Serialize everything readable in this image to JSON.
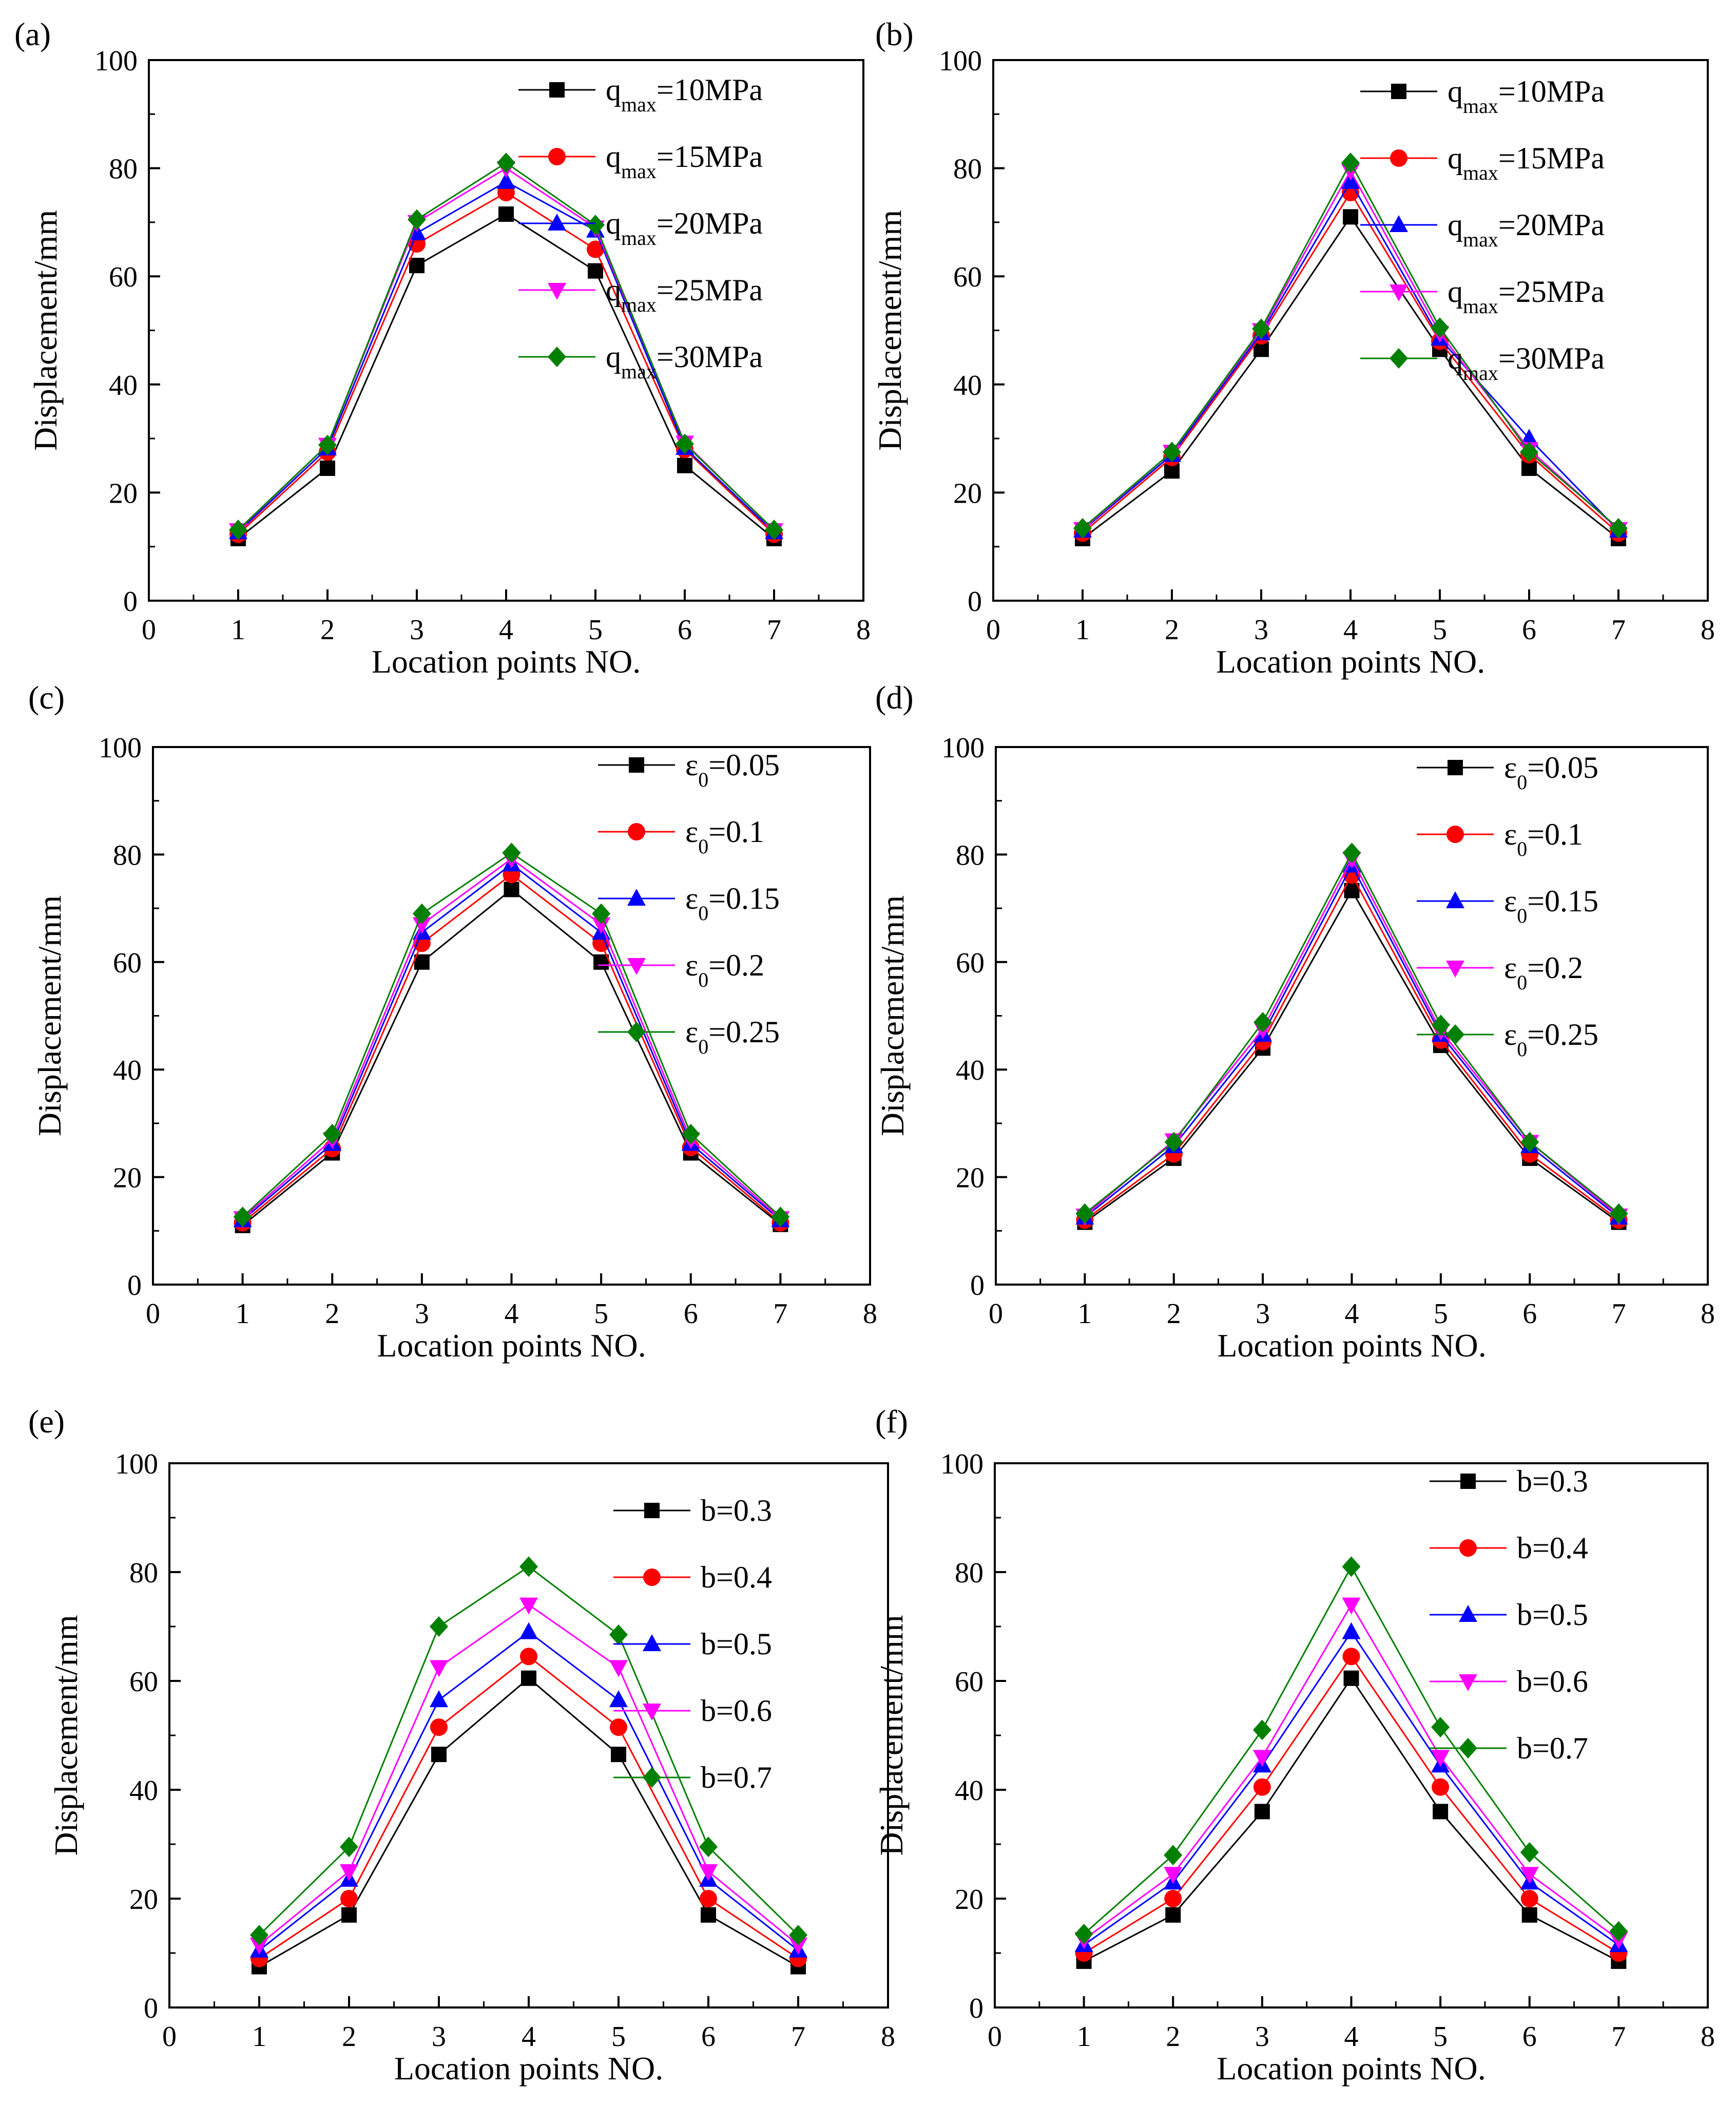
{
  "figure": {
    "panel_count": 6
  },
  "chart_data": [
    {
      "panel": "(a)",
      "type": "line",
      "xlabel": "Location points NO.",
      "ylabel": "Displacement/mm",
      "xlim": [
        0,
        8
      ],
      "ylim": [
        0,
        100
      ],
      "xticks": [
        "0",
        "1",
        "2",
        "3",
        "4",
        "5",
        "6",
        "7",
        "8"
      ],
      "yticks": [
        "0",
        "20",
        "40",
        "60",
        "80",
        "100"
      ],
      "legend_position": "top-right",
      "x": [
        1,
        2,
        3,
        4,
        5,
        6,
        7
      ],
      "series": [
        {
          "name": "q_max=10MPa",
          "legend_base": "q",
          "legend_sub": "max",
          "legend_rest": "=10MPa",
          "color": "#000000",
          "marker": "square",
          "values": [
            11.5,
            24.5,
            62,
            71.5,
            61,
            25,
            11.5
          ]
        },
        {
          "name": "q_max=15MPa",
          "legend_base": "q",
          "legend_sub": "max",
          "legend_rest": "=15MPa",
          "color": "#ff0000",
          "marker": "circle",
          "values": [
            12.3,
            27.5,
            66,
            75.5,
            65,
            28,
            12.3
          ]
        },
        {
          "name": "q_max=20MPa",
          "legend_base": "q",
          "legend_sub": "max",
          "legend_rest": "=20MPa",
          "color": "#0000ff",
          "marker": "triangle-up",
          "values": [
            12.7,
            28.2,
            68,
            77.5,
            68.5,
            28.3,
            12.7
          ]
        },
        {
          "name": "q_max=25MPa",
          "legend_base": "q",
          "legend_sub": "max",
          "legend_rest": "=25MPa",
          "color": "#ff00ff",
          "marker": "triangle-down",
          "values": [
            13,
            28.8,
            70,
            80,
            69,
            29.2,
            13
          ]
        },
        {
          "name": "q_max=30MPa",
          "legend_base": "q",
          "legend_sub": "max",
          "legend_rest": "=30MPa",
          "color": "#008000",
          "marker": "diamond",
          "values": [
            13.1,
            28.8,
            70.5,
            81,
            69.5,
            29,
            13.1
          ]
        }
      ]
    },
    {
      "panel": "(b)",
      "type": "line",
      "xlabel": "Location points NO.",
      "ylabel": "Displacement/mm",
      "xlim": [
        0,
        8
      ],
      "ylim": [
        0,
        100
      ],
      "xticks": [
        "0",
        "1",
        "2",
        "3",
        "4",
        "5",
        "6",
        "7",
        "8"
      ],
      "yticks": [
        "0",
        "20",
        "40",
        "60",
        "80",
        "100"
      ],
      "legend_position": "top-right",
      "x": [
        1,
        2,
        3,
        4,
        5,
        6,
        7
      ],
      "series": [
        {
          "name": "q_max=10MPa",
          "legend_base": "q",
          "legend_sub": "max",
          "legend_rest": "=10MPa",
          "color": "#000000",
          "marker": "square",
          "values": [
            11.5,
            24,
            46.5,
            71,
            46.5,
            24.5,
            11.5
          ]
        },
        {
          "name": "q_max=15MPa",
          "legend_base": "q",
          "legend_sub": "max",
          "legend_rest": "=15MPa",
          "color": "#ff0000",
          "marker": "circle",
          "values": [
            12.5,
            26.5,
            49,
            75.5,
            48,
            27,
            12.5
          ]
        },
        {
          "name": "q_max=20MPa",
          "legend_base": "q",
          "legend_sub": "max",
          "legend_rest": "=20MPa",
          "color": "#0000ff",
          "marker": "triangle-up",
          "values": [
            13,
            27,
            49.5,
            77.5,
            48.5,
            30,
            13
          ]
        },
        {
          "name": "q_max=25MPa",
          "legend_base": "q",
          "legend_sub": "max",
          "legend_rest": "=25MPa",
          "color": "#ff00ff",
          "marker": "triangle-down",
          "values": [
            13.2,
            27.5,
            50,
            79.5,
            49.5,
            28,
            13.2
          ]
        },
        {
          "name": "q_max=30MPa",
          "legend_base": "q",
          "legend_sub": "max",
          "legend_rest": "=30MPa",
          "color": "#008000",
          "marker": "diamond",
          "values": [
            13.4,
            27.5,
            50.3,
            81,
            50.5,
            27.5,
            13.4
          ]
        }
      ]
    },
    {
      "panel": "(c)",
      "type": "line",
      "xlabel": "Location points NO.",
      "ylabel": "Displacement/mm",
      "xlim": [
        0,
        8
      ],
      "ylim": [
        0,
        100
      ],
      "xticks": [
        "0",
        "1",
        "2",
        "3",
        "4",
        "5",
        "6",
        "7",
        "8"
      ],
      "yticks": [
        "0",
        "20",
        "40",
        "60",
        "80",
        "100"
      ],
      "legend_position": "top-right",
      "x": [
        1,
        2,
        3,
        4,
        5,
        6,
        7
      ],
      "series": [
        {
          "name": "ε_0=0.05",
          "legend_base": "ε",
          "legend_sub": "0",
          "legend_rest": "=0.05",
          "color": "#000000",
          "marker": "square",
          "values": [
            11,
            24.5,
            60,
            73.5,
            60,
            24.5,
            11.2
          ]
        },
        {
          "name": "ε_0=0.1",
          "legend_base": "ε",
          "legend_sub": "0",
          "legend_rest": "=0.1",
          "color": "#ff0000",
          "marker": "circle",
          "values": [
            11.5,
            25.3,
            63.5,
            76.3,
            63.5,
            25.5,
            11.5
          ]
        },
        {
          "name": "ε_0=0.15",
          "legend_base": "ε",
          "legend_sub": "0",
          "legend_rest": "=0.15",
          "color": "#0000ff",
          "marker": "triangle-up",
          "values": [
            12,
            26.2,
            65.5,
            78.2,
            65.5,
            26.2,
            12
          ]
        },
        {
          "name": "ε_0=0.2",
          "legend_base": "ε",
          "legend_sub": "0",
          "legend_rest": "=0.2",
          "color": "#ff00ff",
          "marker": "triangle-down",
          "values": [
            12.3,
            27,
            67,
            79.2,
            67,
            27,
            12.3
          ]
        },
        {
          "name": "ε_0=0.25",
          "legend_base": "ε",
          "legend_sub": "0",
          "legend_rest": "=0.25",
          "color": "#008000",
          "marker": "diamond",
          "values": [
            12.6,
            28,
            69,
            80.3,
            69,
            28,
            12.6
          ]
        }
      ]
    },
    {
      "panel": "(d)",
      "type": "line",
      "xlabel": "Location points NO.",
      "ylabel": "Displacement/mm",
      "xlim": [
        0,
        8
      ],
      "ylim": [
        0,
        100
      ],
      "xticks": [
        "0",
        "1",
        "2",
        "3",
        "4",
        "5",
        "6",
        "7",
        "8"
      ],
      "yticks": [
        "0",
        "20",
        "40",
        "60",
        "80",
        "100"
      ],
      "legend_position": "top-right",
      "x": [
        1,
        2,
        3,
        4,
        5,
        6,
        7
      ],
      "series": [
        {
          "name": "ε_0=0.05",
          "legend_base": "ε",
          "legend_sub": "0",
          "legend_rest": "=0.05",
          "color": "#000000",
          "marker": "square",
          "values": [
            11.6,
            23.5,
            44,
            73.3,
            44.5,
            23.5,
            11.6
          ]
        },
        {
          "name": "ε_0=0.1",
          "legend_base": "ε",
          "legend_sub": "0",
          "legend_rest": "=0.1",
          "color": "#ff0000",
          "marker": "circle",
          "values": [
            12,
            24.3,
            45.2,
            76.2,
            45.5,
            24.3,
            12
          ]
        },
        {
          "name": "ε_0=0.15",
          "legend_base": "ε",
          "legend_sub": "0",
          "legend_rest": "=0.15",
          "color": "#0000ff",
          "marker": "triangle-up",
          "values": [
            12.5,
            25.8,
            46.5,
            78,
            46.5,
            25.8,
            12.5
          ]
        },
        {
          "name": "ε_0=0.2",
          "legend_base": "ε",
          "legend_sub": "0",
          "legend_rest": "=0.2",
          "color": "#ff00ff",
          "marker": "triangle-down",
          "values": [
            12.8,
            26.8,
            47.5,
            79.2,
            47.2,
            26.5,
            12.8
          ]
        },
        {
          "name": "ε_0=0.25",
          "legend_base": "ε",
          "legend_sub": "0",
          "legend_rest": "=0.25",
          "color": "#008000",
          "marker": "diamond",
          "values": [
            13.2,
            26.5,
            48.8,
            80.3,
            48.3,
            26.5,
            13.2
          ]
        }
      ]
    },
    {
      "panel": "(e)",
      "type": "line",
      "xlabel": "Location points NO.",
      "ylabel": "Displacement/mm",
      "xlim": [
        0,
        8
      ],
      "ylim": [
        0,
        100
      ],
      "xticks": [
        "0",
        "1",
        "2",
        "3",
        "4",
        "5",
        "6",
        "7",
        "8"
      ],
      "yticks": [
        "0",
        "20",
        "40",
        "60",
        "80",
        "100"
      ],
      "legend_position": "top-right",
      "x": [
        1,
        2,
        3,
        4,
        5,
        6,
        7
      ],
      "series": [
        {
          "name": "b=0.3",
          "legend_base": "b=0.3",
          "legend_sub": "",
          "legend_rest": "",
          "color": "#000000",
          "marker": "square",
          "values": [
            7.5,
            17,
            46.5,
            60.5,
            46.5,
            17,
            7.5
          ]
        },
        {
          "name": "b=0.4",
          "legend_base": "b=0.4",
          "legend_sub": "",
          "legend_rest": "",
          "color": "#ff0000",
          "marker": "circle",
          "values": [
            9,
            20,
            51.5,
            64.5,
            51.5,
            20,
            9
          ]
        },
        {
          "name": "b=0.5",
          "legend_base": "b=0.5",
          "legend_sub": "",
          "legend_rest": "",
          "color": "#0000ff",
          "marker": "triangle-up",
          "values": [
            10.5,
            23.5,
            56.5,
            69,
            56.5,
            23.5,
            10.5
          ]
        },
        {
          "name": "b=0.6",
          "legend_base": "b=0.6",
          "legend_sub": "",
          "legend_rest": "",
          "color": "#ff00ff",
          "marker": "triangle-down",
          "values": [
            11.5,
            25,
            62.5,
            74,
            62.5,
            25,
            11.5
          ]
        },
        {
          "name": "b=0.7",
          "legend_base": "b=0.7",
          "legend_sub": "",
          "legend_rest": "",
          "color": "#008000",
          "marker": "diamond",
          "values": [
            13.3,
            29.5,
            70,
            81,
            68.5,
            29.5,
            13.3
          ]
        }
      ]
    },
    {
      "panel": "(f)",
      "type": "line",
      "xlabel": "Location points NO.",
      "ylabel": "Displacement/mm",
      "xlim": [
        0,
        8
      ],
      "ylim": [
        0,
        100
      ],
      "xticks": [
        "0",
        "1",
        "2",
        "3",
        "4",
        "5",
        "6",
        "7",
        "8"
      ],
      "yticks": [
        "0",
        "20",
        "40",
        "60",
        "80",
        "100"
      ],
      "legend_position": "top-right",
      "x": [
        1,
        2,
        3,
        4,
        5,
        6,
        7
      ],
      "series": [
        {
          "name": "b=0.3",
          "legend_base": "b=0.3",
          "legend_sub": "",
          "legend_rest": "",
          "color": "#000000",
          "marker": "square",
          "values": [
            8.5,
            17,
            36,
            60.5,
            36,
            17,
            8.5
          ]
        },
        {
          "name": "b=0.4",
          "legend_base": "b=0.4",
          "legend_sub": "",
          "legend_rest": "",
          "color": "#ff0000",
          "marker": "circle",
          "values": [
            10,
            20,
            40.5,
            64.5,
            40.5,
            20,
            10
          ]
        },
        {
          "name": "b=0.5",
          "legend_base": "b=0.5",
          "legend_sub": "",
          "legend_rest": "",
          "color": "#0000ff",
          "marker": "triangle-up",
          "values": [
            11.5,
            23,
            44.5,
            69,
            44.5,
            23,
            11.5
          ]
        },
        {
          "name": "b=0.6",
          "legend_base": "b=0.6",
          "legend_sub": "",
          "legend_rest": "",
          "color": "#ff00ff",
          "marker": "triangle-down",
          "values": [
            12.5,
            24.5,
            46,
            74,
            46,
            24.5,
            12.5
          ]
        },
        {
          "name": "b=0.7",
          "legend_base": "b=0.7",
          "legend_sub": "",
          "legend_rest": "",
          "color": "#008000",
          "marker": "diamond",
          "values": [
            13.5,
            28,
            51,
            81,
            51.5,
            28.5,
            14
          ]
        }
      ]
    }
  ]
}
